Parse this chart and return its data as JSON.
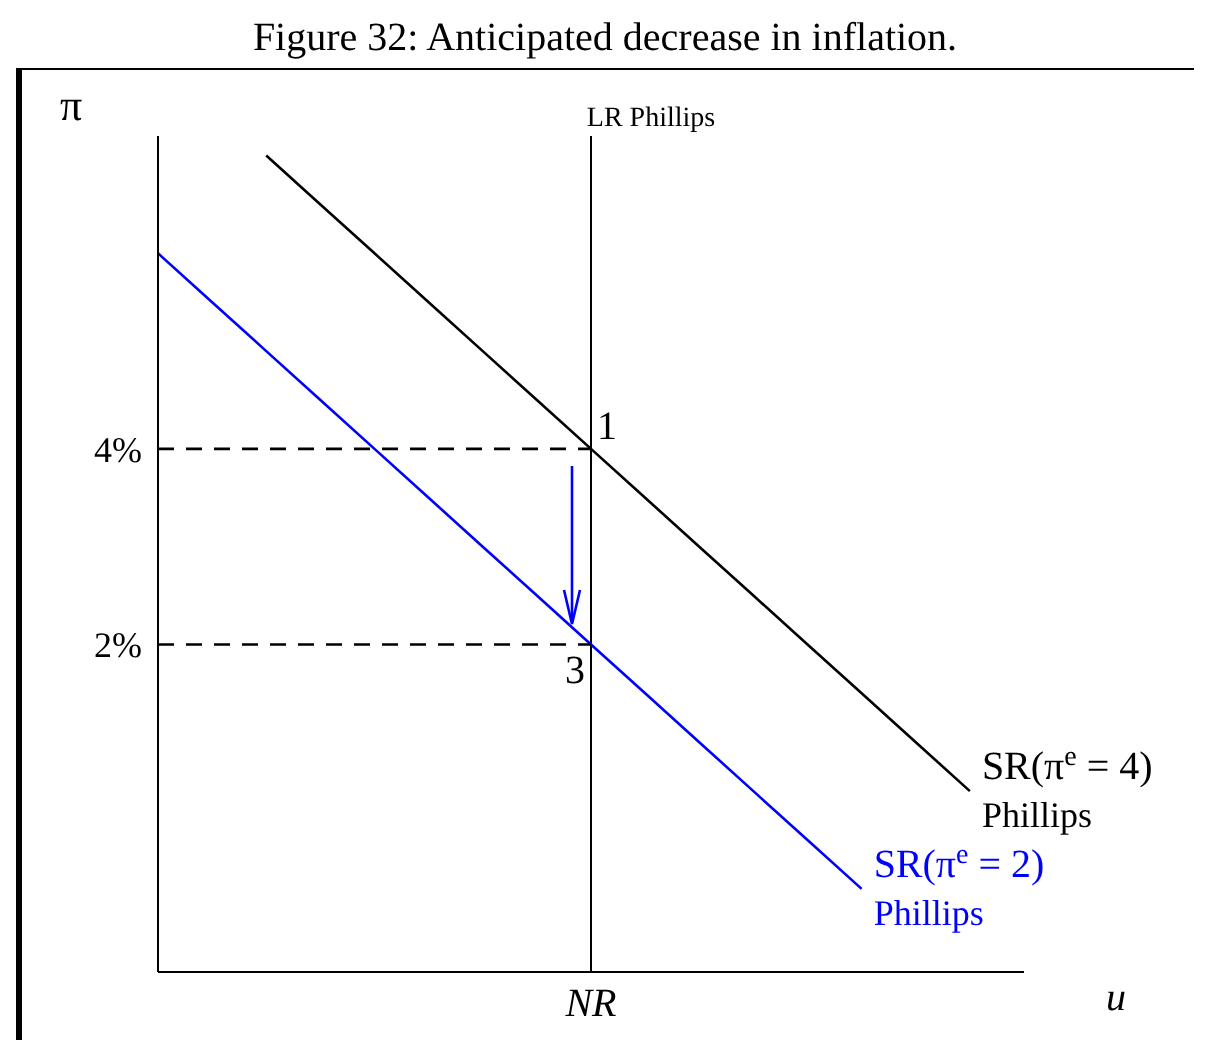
{
  "chart_data": {
    "type": "line",
    "title": "Figure 32: Anticipated decrease in inflation.",
    "xlabel": "u",
    "ylabel": "π",
    "categories": [
      null,
      null,
      null,
      null,
      null,
      null,
      null,
      null,
      "NR",
      null,
      null,
      null,
      null,
      null,
      null,
      null,
      null
    ],
    "ylim": [
      -1.35,
      7.2
    ],
    "yticks": [
      {
        "value": 2,
        "label": "2%"
      },
      {
        "value": 4,
        "label": "4%"
      }
    ],
    "marker": "none",
    "series": [
      {
        "name": "SR(π$^{e}$ = 4) Phillips",
        "color": "#000000",
        "values": [
          null,
          null,
          7,
          6.5,
          6,
          5.5,
          5,
          4.5,
          4,
          3.5,
          3,
          2.5,
          2,
          1.5,
          1,
          0.5,
          null
        ]
      },
      {
        "name": "SR(π$^{e}$ = 2) Phillips",
        "color": "#0000ff",
        "values": [
          6,
          5.5,
          5,
          4.5,
          4,
          3.5,
          3,
          2.5,
          2,
          1.5,
          1,
          0.5,
          0,
          -0.5,
          null,
          null,
          null
        ]
      },
      {
        "color": "#000000",
        "line_style": "dashed",
        "values": [
          4,
          4,
          4,
          4,
          4,
          4,
          4,
          4,
          4,
          null,
          null,
          null,
          null,
          null,
          null,
          null,
          null
        ]
      },
      {
        "color": "#000000",
        "line_style": "dashed",
        "values": [
          2,
          2,
          2,
          2,
          2,
          2,
          2,
          2,
          2,
          null,
          null,
          null,
          null,
          null,
          null,
          null,
          null
        ]
      }
    ],
    "ref_lines": [
      {
        "axis": "x",
        "value": "NR",
        "label": "LR Phillips",
        "color": "#000000"
      }
    ],
    "annotations": [
      {
        "text": "1",
        "x": "NR",
        "y": 4
      },
      {
        "text": "3",
        "x": "NR",
        "y": 2
      }
    ]
  }
}
